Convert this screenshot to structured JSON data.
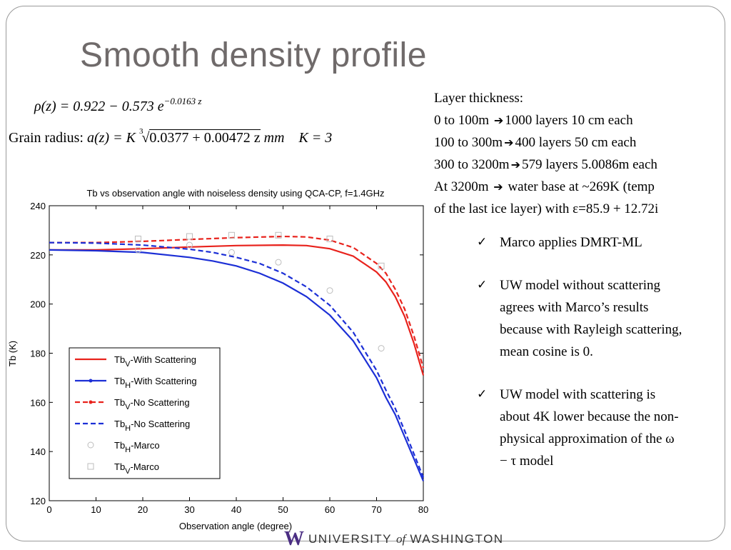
{
  "slide": {
    "title": "Smooth density profile",
    "density_formula": {
      "lhs": "ρ(z) = 0.922 − 0.573 ",
      "base": "e",
      "exponent": "−0.0163 z"
    },
    "grain_formula": {
      "label": "Grain radius: ",
      "lhs": "a(z) = K ",
      "root_index": "3",
      "radicand": "0.0377 + 0.00472 z",
      "unit": " mm",
      "k_value": "K = 3"
    },
    "layers": {
      "heading": "Layer thickness:",
      "rows": [
        {
          "range": "0 to 100m ",
          "desc": "1000 layers 10 cm each"
        },
        {
          "range": "100 to 300m",
          "desc": "400 layers 50 cm each"
        },
        {
          "range": "300 to 3200m",
          "desc": "579 layers 5.0086m each"
        },
        {
          "range": "At 3200m  ",
          "desc": " water base at ~269K (temp"
        }
      ],
      "last_line": "of the last ice layer) with ε=85.9 + 12.72i"
    },
    "bullets": [
      "Marco applies DMRT-ML",
      "UW model without scattering agrees with Marco’s results because with Rayleigh scattering, mean cosine is 0.",
      "UW model with scattering is about 4K lower because the non-physical approximation of the ω − τ model"
    ],
    "footer": {
      "logo_letter": "W",
      "text_a": "UNIVERSITY ",
      "text_of": "of",
      "text_b": " WASHINGTON"
    }
  },
  "chart_data": {
    "type": "line",
    "title": "Tb vs observation angle with noiseless density using QCA-CP, f=1.4GHz",
    "xlabel": "Observation angle (degree)",
    "ylabel": "Tb (K)",
    "xlim": [
      0,
      80
    ],
    "ylim": [
      120,
      240
    ],
    "xticks": [
      0,
      10,
      20,
      30,
      40,
      50,
      60,
      70,
      80
    ],
    "yticks": [
      120,
      140,
      160,
      180,
      200,
      220,
      240
    ],
    "legend_position": "lower-left",
    "series": [
      {
        "name": "TbV-With Scattering",
        "sub": "V",
        "prefix": "Tb",
        "suffix": "-With Scattering",
        "color": "#e8221c",
        "style": "solid",
        "x": [
          0,
          10,
          20,
          30,
          40,
          50,
          55,
          60,
          65,
          70,
          72,
          74,
          76,
          78,
          80
        ],
        "y": [
          222,
          222,
          222.5,
          223.2,
          223.8,
          224,
          223.8,
          222.5,
          219.5,
          213,
          209,
          203,
          195,
          184,
          171
        ]
      },
      {
        "name": "TbH-With Scattering",
        "sub": "H",
        "prefix": "Tb",
        "suffix": "-With Scattering",
        "color": "#1c2fd6",
        "style": "solid",
        "x": [
          0,
          10,
          20,
          30,
          35,
          40,
          45,
          50,
          55,
          60,
          65,
          70,
          72,
          74,
          76,
          78,
          80
        ],
        "y": [
          222,
          221.7,
          221,
          219,
          217.5,
          215.5,
          212.5,
          208.5,
          203,
          195.5,
          185,
          170,
          162,
          155,
          146,
          137,
          128
        ]
      },
      {
        "name": "TbV-No Scattering",
        "sub": "V",
        "prefix": "Tb",
        "suffix": "-No Scattering",
        "color": "#e8221c",
        "style": "dashed",
        "x": [
          0,
          10,
          20,
          30,
          40,
          50,
          55,
          60,
          65,
          70,
          72,
          74,
          76,
          78,
          80
        ],
        "y": [
          225,
          225,
          225.5,
          226.3,
          227,
          227.5,
          227.3,
          226,
          223,
          216.5,
          212.5,
          206,
          198,
          187,
          174
        ]
      },
      {
        "name": "TbH-No Scattering",
        "sub": "H",
        "prefix": "Tb",
        "suffix": "-No Scattering",
        "color": "#1c2fd6",
        "style": "dashed",
        "x": [
          0,
          10,
          20,
          30,
          35,
          40,
          45,
          50,
          55,
          60,
          65,
          70,
          72,
          74,
          76,
          78,
          80
        ],
        "y": [
          225,
          224.8,
          224,
          222.3,
          221,
          219,
          216.5,
          212.5,
          207,
          199.5,
          188.5,
          173,
          165,
          157.5,
          148.5,
          139,
          129.5
        ]
      },
      {
        "name": "TbH-Marco",
        "sub": "H",
        "prefix": "Tb",
        "suffix": "-Marco",
        "color": "#bdbdbd",
        "style": "circle",
        "x": [
          19,
          30,
          39,
          49,
          60,
          71
        ],
        "y": [
          222,
          224,
          221,
          217,
          205.5,
          182
        ]
      },
      {
        "name": "TbV-Marco",
        "sub": "V",
        "prefix": "Tb",
        "suffix": "-Marco",
        "color": "#bdbdbd",
        "style": "square",
        "x": [
          19,
          30,
          39,
          49,
          60,
          71
        ],
        "y": [
          226.5,
          227.5,
          228,
          228,
          226.5,
          215.5
        ]
      }
    ]
  }
}
